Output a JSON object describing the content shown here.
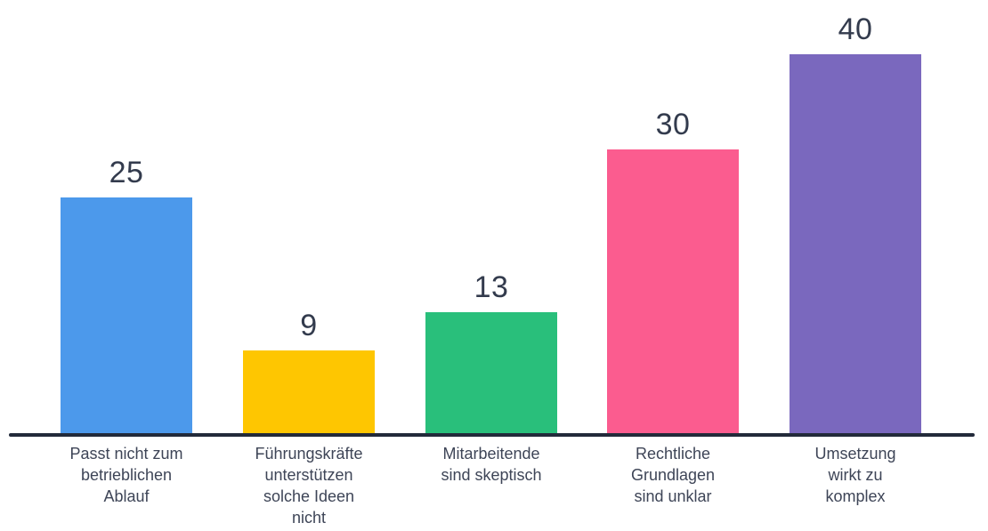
{
  "chart_data": {
    "type": "bar",
    "title": "",
    "xlabel": "",
    "ylabel": "",
    "categories": [
      "Passt nicht zum betrieblichen Ablauf",
      "Führungskräfte unterstützen solche Ideen nicht",
      "Mitarbeitende sind skeptisch",
      "Rechtliche Grundlagen sind unklar",
      "Umsetzung wirkt zu komplex"
    ],
    "category_lines": [
      [
        "Passt nicht zum",
        "betrieblichen",
        "Ablauf"
      ],
      [
        "Führungskräfte",
        "unterstützen",
        "solche Ideen",
        "nicht"
      ],
      [
        "Mitarbeitende",
        "sind skeptisch"
      ],
      [
        "Rechtliche",
        "Grundlagen",
        "sind unklar"
      ],
      [
        "Umsetzung",
        "wirkt zu",
        "komplex"
      ]
    ],
    "values": [
      25,
      9,
      13,
      30,
      40
    ],
    "value_labels": [
      "25",
      "9",
      "13",
      "30",
      "40"
    ],
    "bar_colors": [
      "#4C99EB",
      "#FEC601",
      "#29BF7B",
      "#FB5C8F",
      "#7A68BE"
    ],
    "ylim": [
      0,
      42
    ],
    "grid": false,
    "legend": false,
    "value_labels_shown": true,
    "colors": {
      "axis_line": "#222A3A",
      "value_text": "#333B4D",
      "category_text": "#3E4557",
      "background": "#FFFFFF"
    }
  }
}
